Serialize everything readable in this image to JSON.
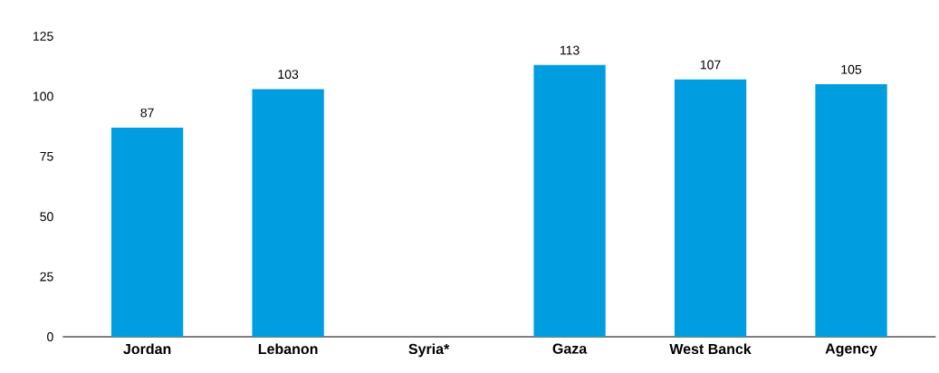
{
  "chart_data": {
    "type": "bar",
    "categories": [
      "Jordan",
      "Lebanon",
      "Syria*",
      "Gaza",
      "West Banck",
      "Agency"
    ],
    "values": [
      87,
      103,
      null,
      113,
      107,
      105
    ],
    "color": "#009ee0",
    "ylim": [
      0,
      125
    ],
    "yticks": [
      0,
      25,
      50,
      75,
      100,
      125
    ],
    "data_labels": true
  }
}
